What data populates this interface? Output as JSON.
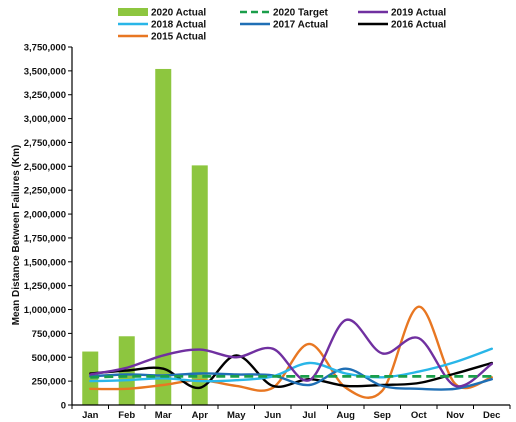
{
  "chart_data": {
    "type": "bar",
    "title": "",
    "xlabel": "",
    "ylabel": "Mean Distance Between Failures (Km)",
    "categories": [
      "Jan",
      "Feb",
      "Mar",
      "Apr",
      "May",
      "Jun",
      "Jul",
      "Aug",
      "Sep",
      "Oct",
      "Nov",
      "Dec"
    ],
    "ylim": [
      0,
      3750000
    ],
    "yticks": [
      0,
      250000,
      500000,
      750000,
      1000000,
      1250000,
      1500000,
      1750000,
      2000000,
      2250000,
      2500000,
      2750000,
      3000000,
      3250000,
      3500000,
      3750000
    ],
    "ytick_labels": [
      "0",
      "250,000",
      "500,000",
      "750,000",
      "1,000,000",
      "1,250,000",
      "1,500,000",
      "1,750,000",
      "2,000,000",
      "2,250,000",
      "2,500,000",
      "2,750,000",
      "3,000,000",
      "3,250,000",
      "3,500,000",
      "3,750,000"
    ],
    "grid": false,
    "legend_position": "top",
    "bar_series": [
      {
        "name": "2020 Actual",
        "color": "#8dc63f",
        "values": [
          560000,
          720000,
          3520000,
          2510000,
          null,
          null,
          null,
          null,
          null,
          null,
          null,
          null
        ]
      }
    ],
    "line_series": [
      {
        "name": "2020 Target",
        "color": "#1a9e4a",
        "dash": true,
        "values": [
          290000,
          300000,
          300000,
          300000,
          300000,
          300000,
          300000,
          300000,
          300000,
          300000,
          300000,
          300000
        ]
      },
      {
        "name": "2019 Actual",
        "color": "#7030a0",
        "values": [
          320000,
          390000,
          520000,
          580000,
          500000,
          590000,
          260000,
          890000,
          540000,
          700000,
          200000,
          430000
        ]
      },
      {
        "name": "2018 Actual",
        "color": "#29b6e8",
        "values": [
          250000,
          260000,
          280000,
          250000,
          260000,
          300000,
          440000,
          330000,
          290000,
          350000,
          450000,
          590000
        ]
      },
      {
        "name": "2017 Actual",
        "color": "#1f6fb5",
        "values": [
          300000,
          320000,
          310000,
          330000,
          320000,
          310000,
          210000,
          380000,
          200000,
          170000,
          170000,
          270000
        ]
      },
      {
        "name": "2016 Actual",
        "color": "#000000",
        "values": [
          330000,
          360000,
          380000,
          180000,
          520000,
          200000,
          270000,
          200000,
          210000,
          230000,
          330000,
          440000
        ]
      },
      {
        "name": "2015 Actual",
        "color": "#e87722",
        "values": [
          170000,
          170000,
          210000,
          260000,
          200000,
          180000,
          640000,
          180000,
          150000,
          1030000,
          220000,
          290000
        ]
      }
    ]
  }
}
